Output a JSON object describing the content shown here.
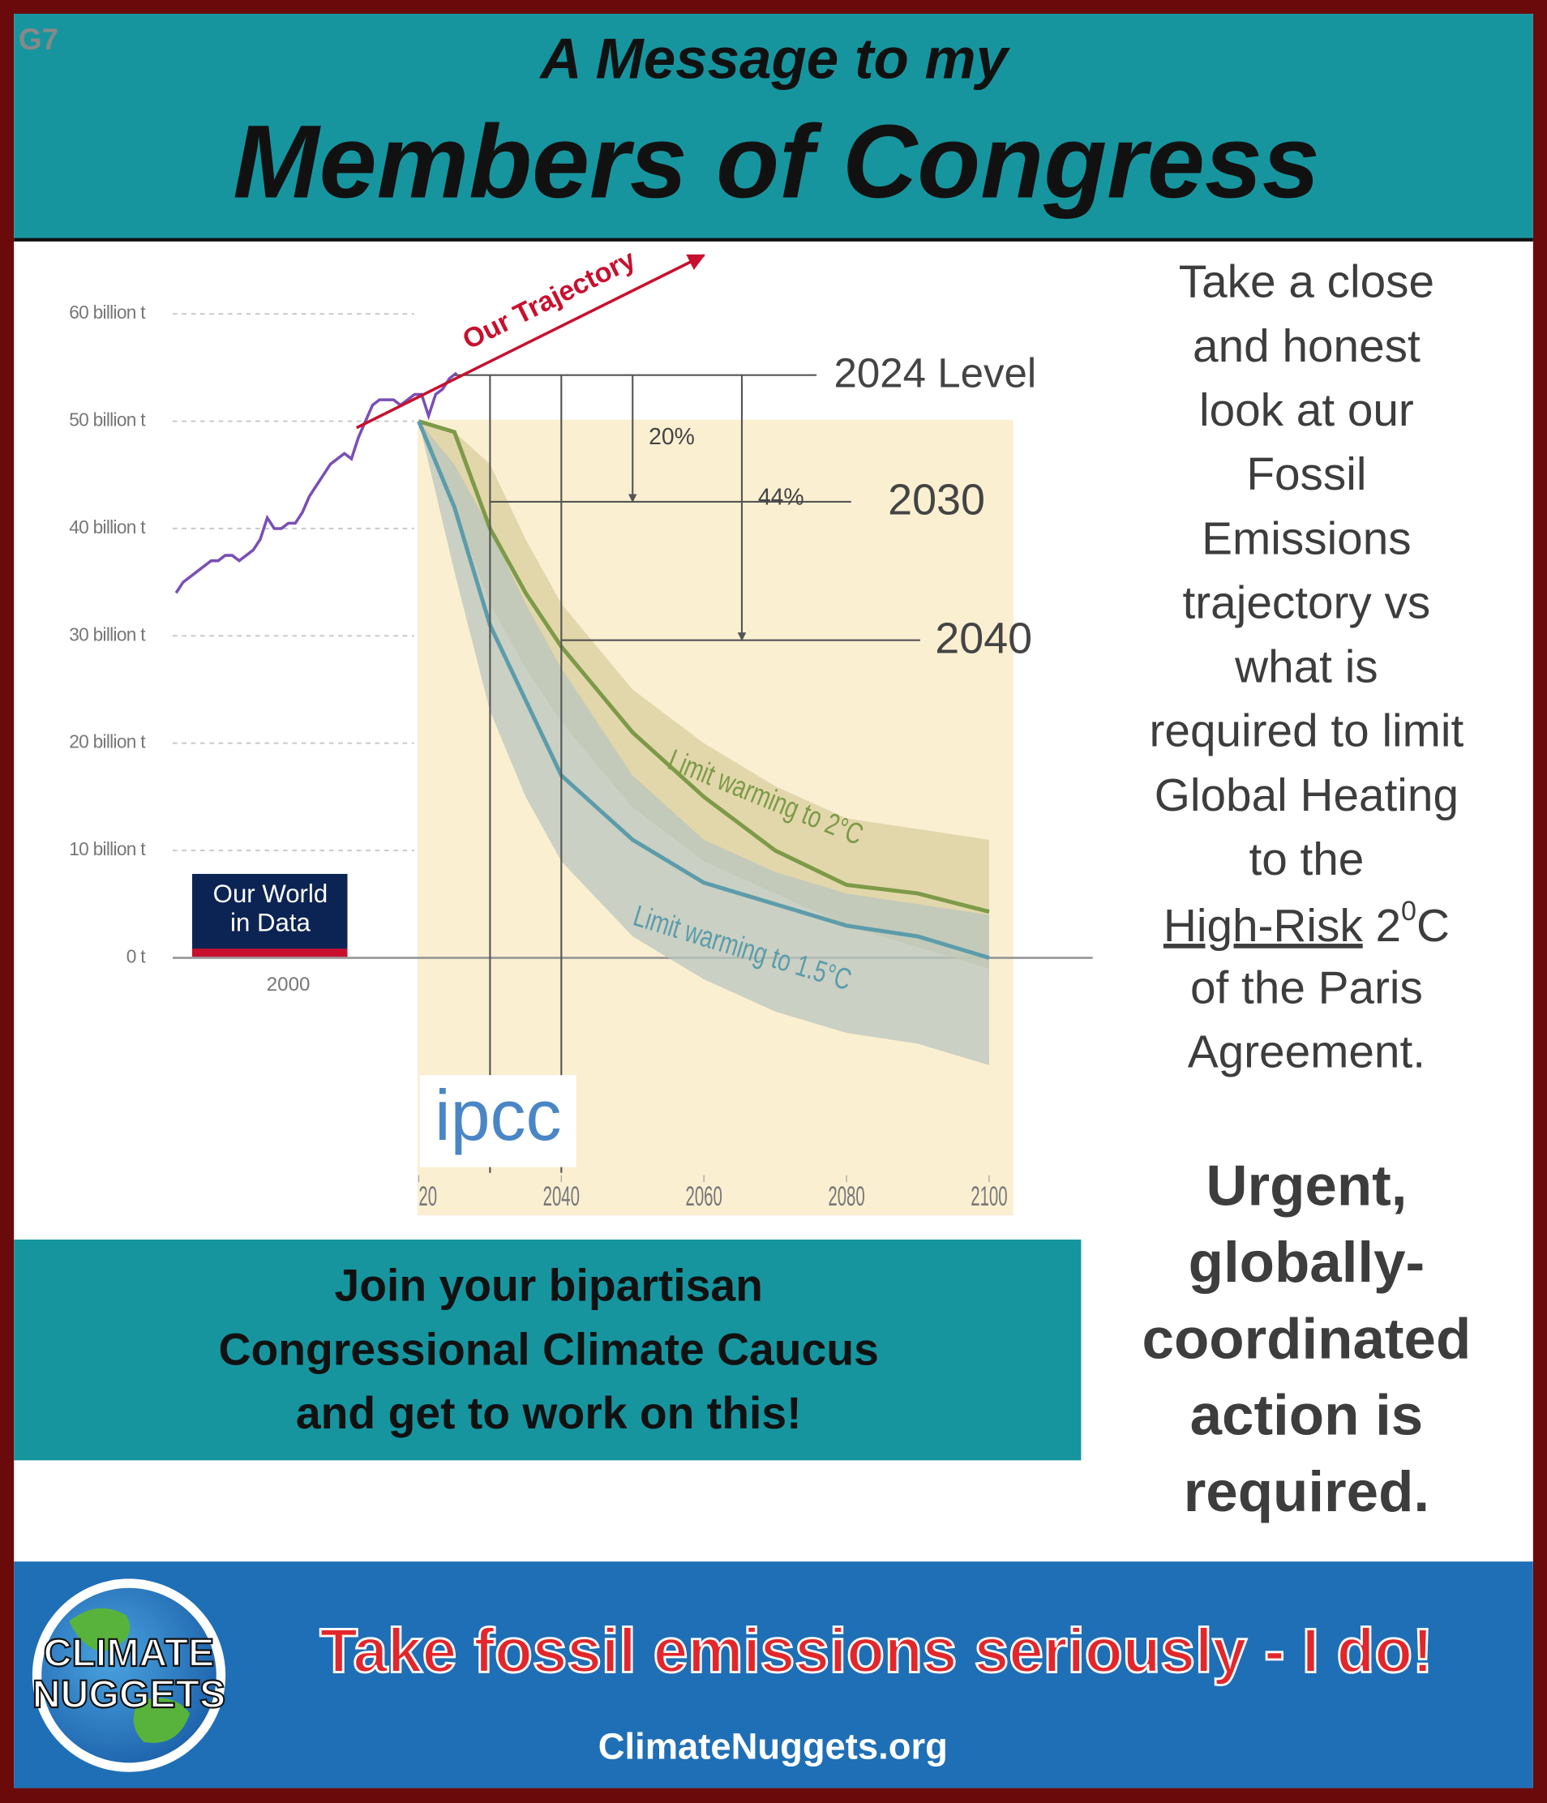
{
  "corner_label": "G7",
  "header": {
    "line1": "A Message to my",
    "line2": "Members of Congress"
  },
  "chart_data": [
    {
      "type": "line",
      "x": [
        1984,
        1985,
        1986,
        1987,
        1988,
        1989,
        1990,
        1991,
        1992,
        1993,
        1994,
        1995,
        1996,
        1997,
        1998,
        1999,
        2000,
        2001,
        2002,
        2003,
        2004,
        2005,
        2006,
        2007,
        2008,
        2009,
        2010,
        2011,
        2012,
        2013,
        2014,
        2015,
        2016,
        2017,
        2018,
        2019,
        2020,
        2021,
        2022,
        2023,
        2024
      ],
      "series": [
        {
          "color": "#7a4fb5",
          "values": [
            34,
            35,
            35.5,
            36,
            36.5,
            37,
            37,
            37.5,
            37.5,
            37,
            37.5,
            38,
            39,
            41,
            40,
            40,
            40.5,
            40.5,
            41.5,
            43,
            44,
            45,
            46,
            46.5,
            47,
            46.5,
            48.5,
            50,
            51.5,
            52,
            52,
            52,
            51.5,
            52,
            52.5,
            52.5,
            50.5,
            52.5,
            53,
            54,
            54.5
          ]
        }
      ],
      "xlim": [
        1984,
        2024
      ],
      "xticks": [
        2000
      ],
      "ylim": [
        0,
        60
      ],
      "yticks": [
        {
          "value": 0,
          "label": "0 t"
        },
        {
          "value": 10,
          "label": "10 billion t"
        },
        {
          "value": 20,
          "label": "20 billion t"
        },
        {
          "value": 30,
          "label": "30 billion t"
        },
        {
          "value": 40,
          "label": "40 billion t"
        },
        {
          "value": 50,
          "label": "50 billion t"
        },
        {
          "value": 60,
          "label": "60 billion t"
        }
      ],
      "grid": true
    },
    {
      "type": "line",
      "x": [
        2020,
        2025,
        2030,
        2035,
        2040,
        2050,
        2060,
        2070,
        2080,
        2090,
        2100
      ],
      "series": [
        {
          "name": "Limit warming to 2°C",
          "color": "#7d9a48",
          "band_color": "#d9cf9e",
          "values": [
            50,
            49,
            40,
            34,
            29,
            21,
            15,
            10,
            6.8,
            6,
            4.3
          ],
          "high": [
            50,
            49,
            46,
            39,
            33,
            25,
            20,
            16,
            13,
            12,
            11
          ],
          "low": [
            50,
            42,
            33,
            27,
            22,
            14,
            9,
            6,
            3,
            1,
            -1
          ]
        },
        {
          "name": "Limit warming to 1.5°C",
          "color": "#5c9cab",
          "band_color": "#b9c6bd",
          "values": [
            50,
            42,
            31,
            24,
            17,
            11,
            7,
            5,
            3,
            2,
            0
          ],
          "high": [
            50,
            46,
            40,
            33,
            27,
            17,
            11,
            8,
            6,
            5,
            4
          ],
          "low": [
            50,
            36,
            23,
            15,
            9,
            2,
            -2,
            -5,
            -7,
            -8,
            -10
          ]
        }
      ],
      "xlim": [
        2020,
        2100
      ],
      "xticks": [
        {
          "value": 2020,
          "label": "20"
        },
        2040,
        2060,
        2080,
        2100
      ],
      "ylim": [
        0,
        60
      ],
      "trajectory_label": "Our Trajectory",
      "reference_lines": [
        {
          "label": "2024 Level",
          "value": 54.3
        },
        {
          "label": "2030",
          "year": 2030,
          "value": 42.5
        },
        {
          "label": "2040",
          "year": 2040,
          "value": 29.6
        }
      ],
      "reductions": [
        20,
        44
      ],
      "reduction_labels": [
        "20%",
        "44%"
      ]
    }
  ],
  "logos": {
    "owid": [
      "Our World",
      "in Data"
    ],
    "ipcc": "ipcc"
  },
  "side_text": {
    "lines": [
      "Take a close",
      "and honest",
      "look at our",
      "Fossil",
      "Emissions",
      "trajectory vs",
      "what is",
      "required to limit",
      "Global Heating",
      "to the"
    ],
    "underlined": "High-Risk",
    "number": " 2",
    "superscript": "0",
    "unit": "C",
    "lines_after": [
      "of the Paris",
      "Agreement."
    ]
  },
  "urgent": {
    "lines": [
      "Urgent,",
      "globally-",
      "coordinated",
      "action is",
      "required."
    ]
  },
  "call_to_action": {
    "lines": [
      "Join your bipartisan",
      "Congressional Climate Caucus",
      "and get to work on this!"
    ]
  },
  "footer": {
    "logo": [
      "CLIMATE",
      "NUGGETS"
    ],
    "slogan": "Take fossil emissions seriously - I do!",
    "url": "ClimateNuggets.org"
  }
}
